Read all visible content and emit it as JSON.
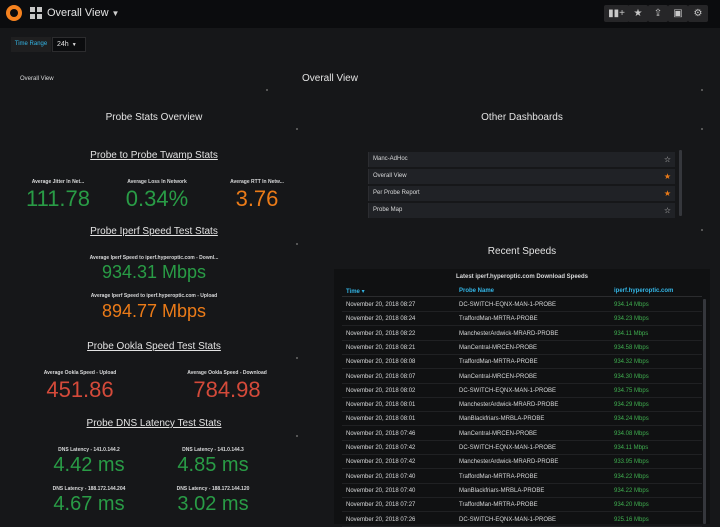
{
  "header": {
    "title": "Overall View",
    "time_range_label": "Time Range",
    "time_range_value": "24h"
  },
  "panels": {
    "small_text": "Overall View",
    "main_title": "Overall View",
    "probe_stats_title": "Probe Stats Overview",
    "other_dashboards_title": "Other Dashboards",
    "recent_speeds_title": "Recent Speeds"
  },
  "twamp": {
    "heading": "Probe to Probe Twamp Stats",
    "jitter_label": "Average Jitter In Net...",
    "jitter_value": "111.78",
    "loss_label": "Average Loss In Network",
    "loss_value": "0.34%",
    "rtt_label": "Average RTT In Netw...",
    "rtt_value": "3.76"
  },
  "iperf": {
    "heading": "Probe Iperf Speed Test Stats",
    "download_label": "Average Iperf Speed to iperf.hyperoptic.com - Downl...",
    "download_value": "934.31 Mbps",
    "upload_label": "Average Iperf Speed to iperf.hyperoptic.com - Upload",
    "upload_value": "894.77 Mbps"
  },
  "ookla": {
    "heading": "Probe Ookla Speed Test Stats",
    "upload_label": "Average Ookla Speed - Upload",
    "upload_value": "451.86",
    "download_label": "Average Ookla Speed - Download",
    "download_value": "784.98"
  },
  "dns": {
    "heading": "Probe DNS Latency Test Stats",
    "l1_label": "DNS Latency - 141.0.144.2",
    "l1_value": "4.42 ms",
    "l2_label": "DNS Latency - 141.0.144.3",
    "l2_value": "4.85 ms",
    "l3_label": "DNS Latency - 188.172.144.204",
    "l3_value": "4.67 ms",
    "l4_label": "DNS Latency - 188.172.144.120",
    "l4_value": "3.02 ms"
  },
  "dashboards": {
    "items": [
      {
        "label": "Manc-AdHoc",
        "starred": false
      },
      {
        "label": "Overall View",
        "starred": true
      },
      {
        "label": "Per Probe Report",
        "starred": true
      },
      {
        "label": "Probe Map",
        "starred": false
      }
    ]
  },
  "speeds_table": {
    "title": "Latest iperf.hyperoptic.com Download Speeds",
    "col_time": "Time ▾",
    "col_probe": "Probe Name",
    "col_speed": "iperf.hyperoptic.com",
    "rows": [
      {
        "time": "November 20, 2018 08:27",
        "probe": "DC-SWITCH-EQNX-MAN-1-PROBE",
        "speed": "934.14 Mbps"
      },
      {
        "time": "November 20, 2018 08:24",
        "probe": "TraffordMan-MRTRA-PROBE",
        "speed": "934.23 Mbps"
      },
      {
        "time": "November 20, 2018 08:22",
        "probe": "ManchesterArdwick-MRARD-PROBE",
        "speed": "934.11 Mbps"
      },
      {
        "time": "November 20, 2018 08:21",
        "probe": "ManCentral-MRCEN-PROBE",
        "speed": "934.58 Mbps"
      },
      {
        "time": "November 20, 2018 08:08",
        "probe": "TraffordMan-MRTRA-PROBE",
        "speed": "934.32 Mbps"
      },
      {
        "time": "November 20, 2018 08:07",
        "probe": "ManCentral-MRCEN-PROBE",
        "speed": "934.30 Mbps"
      },
      {
        "time": "November 20, 2018 08:02",
        "probe": "DC-SWITCH-EQNX-MAN-1-PROBE",
        "speed": "934.75 Mbps"
      },
      {
        "time": "November 20, 2018 08:01",
        "probe": "ManchesterArdwick-MRARD-PROBE",
        "speed": "934.29 Mbps"
      },
      {
        "time": "November 20, 2018 08:01",
        "probe": "ManBlackfriars-MRBLA-PROBE",
        "speed": "934.24 Mbps"
      },
      {
        "time": "November 20, 2018 07:46",
        "probe": "ManCentral-MRCEN-PROBE",
        "speed": "934.08 Mbps"
      },
      {
        "time": "November 20, 2018 07:42",
        "probe": "DC-SWITCH-EQNX-MAN-1-PROBE",
        "speed": "934.11 Mbps"
      },
      {
        "time": "November 20, 2018 07:42",
        "probe": "ManchesterArdwick-MRARD-PROBE",
        "speed": "933.95 Mbps"
      },
      {
        "time": "November 20, 2018 07:40",
        "probe": "TraffordMan-MRTRA-PROBE",
        "speed": "934.22 Mbps"
      },
      {
        "time": "November 20, 2018 07:40",
        "probe": "ManBlackfriars-MRBLA-PROBE",
        "speed": "934.22 Mbps"
      },
      {
        "time": "November 20, 2018 07:27",
        "probe": "TraffordMan-MRTRA-PROBE",
        "speed": "934.20 Mbps"
      },
      {
        "time": "November 20, 2018 07:26",
        "probe": "DC-SWITCH-EQNX-MAN-1-PROBE",
        "speed": "925.16 Mbps"
      }
    ]
  },
  "colors": {
    "green": "#299c46",
    "orange": "#eb7b18",
    "red": "#d44a3a",
    "blue": "#33b5e5"
  },
  "icons": {
    "logo": "grafana-logo-icon",
    "dashboards": "grid-icon",
    "add_panel": "add-panel-icon",
    "star": "star-icon",
    "share": "share-icon",
    "save": "save-icon",
    "settings": "gear-icon"
  }
}
